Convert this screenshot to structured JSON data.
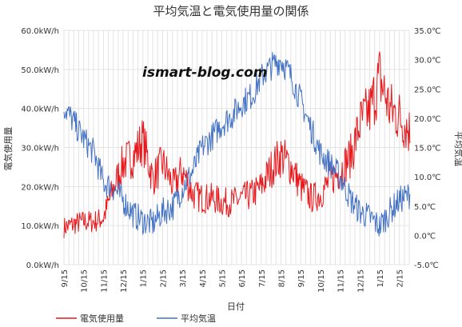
{
  "chart_data": {
    "type": "line",
    "title": "平均気温と電気使用量の関係",
    "watermark": "ismart-blog.com",
    "xlabel": "日付",
    "ylabel_left": "電気使用量",
    "ylabel_right": "平均気温",
    "x_ticks": [
      "9/15",
      "10/15",
      "11/15",
      "12/15",
      "1/15",
      "2/15",
      "3/15",
      "4/15",
      "5/15",
      "6/15",
      "7/15",
      "8/15",
      "9/15",
      "10/15",
      "11/15",
      "12/15",
      "1/15",
      "2/15"
    ],
    "y_left_ticks": [
      "0.0kW/h",
      "10.0kW/h",
      "20.0kW/h",
      "30.0kW/h",
      "40.0kW/h",
      "50.0kW/h",
      "60.0kW/h"
    ],
    "y_right_ticks": [
      "-5.0℃",
      "0.0℃",
      "5.0℃",
      "10.0℃",
      "15.0℃",
      "20.0℃",
      "25.0℃",
      "30.0℃",
      "35.0℃"
    ],
    "y_left_range": [
      0,
      60
    ],
    "y_right_range": [
      -5,
      35
    ],
    "series": [
      {
        "name": "電気使用量",
        "axis": "left",
        "color": "#e8191d",
        "x": [
          "9/15",
          "10/1",
          "10/15",
          "11/1",
          "11/15",
          "12/1",
          "12/15",
          "1/1",
          "1/15",
          "2/1",
          "2/15",
          "3/1",
          "3/15",
          "4/1",
          "4/15",
          "5/1",
          "5/15",
          "6/1",
          "6/15",
          "7/1",
          "7/15",
          "8/1",
          "8/15",
          "9/1",
          "9/15",
          "10/1",
          "10/15",
          "11/1",
          "11/15",
          "12/1",
          "12/15",
          "1/1",
          "1/15",
          "2/1",
          "2/15",
          "3/1"
        ],
        "values": [
          9.5,
          10.5,
          11,
          11,
          12,
          20,
          26,
          28,
          32,
          22,
          26,
          20,
          24,
          18,
          17,
          17,
          16,
          16,
          17,
          18,
          20,
          25,
          28,
          25,
          20,
          17,
          18,
          22,
          24,
          28,
          36,
          40,
          48,
          40,
          38,
          34
        ]
      },
      {
        "name": "平均気温",
        "axis": "right",
        "color": "#4472c4",
        "x": [
          "9/15",
          "10/1",
          "10/15",
          "11/1",
          "11/15",
          "12/1",
          "12/15",
          "1/1",
          "1/15",
          "2/1",
          "2/15",
          "3/1",
          "3/15",
          "4/1",
          "4/15",
          "5/1",
          "5/15",
          "6/1",
          "6/15",
          "7/1",
          "7/15",
          "8/1",
          "8/15",
          "9/1",
          "9/15",
          "10/1",
          "10/15",
          "11/1",
          "11/15",
          "12/1",
          "12/15",
          "1/1",
          "1/15",
          "2/1",
          "2/15",
          "3/1"
        ],
        "values": [
          22,
          19,
          16.5,
          14,
          9,
          8,
          6,
          3.5,
          2.5,
          2,
          4,
          5,
          8,
          11,
          15,
          17,
          19,
          20.5,
          22.5,
          24,
          27,
          29,
          30,
          27,
          23,
          18,
          14,
          12,
          10,
          6,
          4,
          3,
          1.5,
          4,
          6,
          7
        ]
      }
    ],
    "legend_placement": "bottom-left",
    "grid": true
  }
}
